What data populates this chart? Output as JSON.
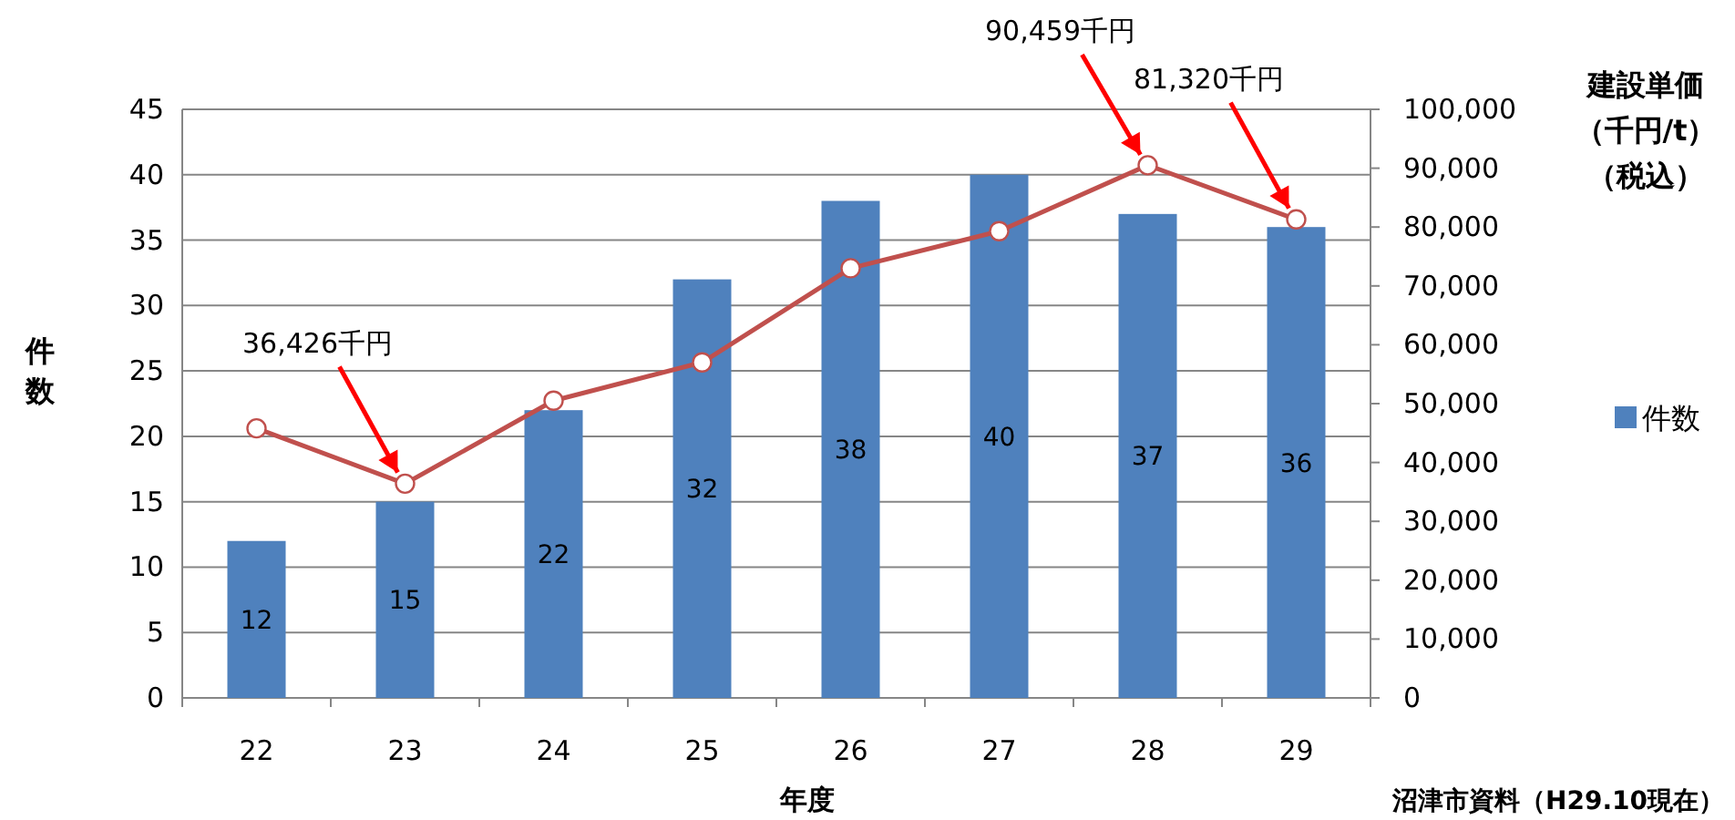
{
  "chart_data": {
    "type": "bar",
    "xlabel": "年度",
    "ylabel": "件数",
    "y2label": "建設単価（千円/t）（税込）",
    "categories": [
      "22",
      "23",
      "24",
      "25",
      "26",
      "27",
      "28",
      "29"
    ],
    "series": [
      {
        "name": "件数",
        "color": "#4f81bd",
        "values": [
          12,
          15,
          22,
          32,
          38,
          40,
          37,
          36
        ],
        "value_labels": [
          "12",
          "15",
          "22",
          "32",
          "38",
          "40",
          "37",
          "36"
        ]
      },
      {
        "type": "line",
        "axis": "y2",
        "color": "#c0504d",
        "marker": "circle",
        "values": [
          45800,
          36400,
          50500,
          57000,
          73000,
          79300,
          90500,
          81300
        ]
      }
    ],
    "ylim": [
      0,
      45
    ],
    "yticks": [
      0,
      5,
      10,
      15,
      20,
      25,
      30,
      35,
      40,
      45
    ],
    "y2lim": [
      0,
      100000
    ],
    "y2ticks": [
      0,
      {
        "value": 10000,
        "label": "10,000"
      },
      {
        "value": 20000,
        "label": "20,000"
      },
      {
        "value": 30000,
        "label": "30,000"
      },
      {
        "value": 40000,
        "label": "40,000"
      },
      {
        "value": 50000,
        "label": "50,000"
      },
      {
        "value": 60000,
        "label": "60,000"
      },
      {
        "value": 70000,
        "label": "70,000"
      },
      {
        "value": 80000,
        "label": "80,000"
      },
      {
        "value": 90000,
        "label": "90,000"
      },
      {
        "value": 100000,
        "label": "100,000"
      }
    ],
    "grid": "y",
    "legend": "right",
    "annotations": [
      {
        "text": "36,426千円",
        "x": "23",
        "y": 16.4
      },
      {
        "text": "90,459千円",
        "x": "28",
        "y": 40.7
      },
      {
        "text": "81,320千円",
        "x": "29",
        "y": 36.6
      },
      "沼津市資料（H29.10現在）"
    ]
  }
}
